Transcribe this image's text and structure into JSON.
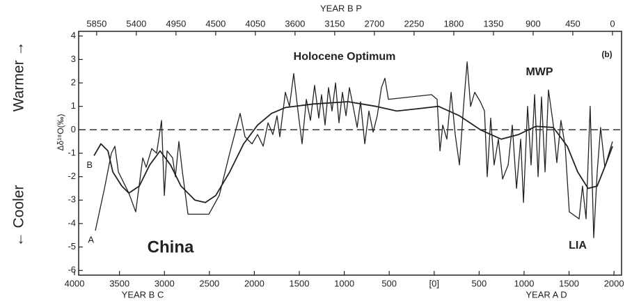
{
  "chart_data": {
    "type": "line",
    "top_axis_label": "YEAR B P",
    "bottom_axis_labels": [
      "YEAR B C",
      "YEAR A D"
    ],
    "ylabel": "Δδ¹⁸O(‰)",
    "side_labels": [
      "Warmer →",
      "← Cooler"
    ],
    "annotations": [
      "Holocene Optimum",
      "MWP",
      "LIA",
      "China",
      "(b)"
    ],
    "xlim": [
      -3954,
      2084
    ],
    "xticks": [
      {
        "value": -4000,
        "label": "4000"
      },
      {
        "value": -3500,
        "label": "3500"
      },
      {
        "value": -3000,
        "label": "3000"
      },
      {
        "value": -2500,
        "label": "2500"
      },
      {
        "value": -2000,
        "label": "2000"
      },
      {
        "value": -1500,
        "label": "1500"
      },
      {
        "value": -1000,
        "label": "1000"
      },
      {
        "value": -500,
        "label": "500"
      },
      {
        "value": 0,
        "label": "[0]"
      },
      500,
      1000,
      1500,
      2000
    ],
    "x2lim": [
      6054,
      -103
    ],
    "x2ticks": [
      5850,
      5400,
      4950,
      4500,
      4050,
      3600,
      3150,
      2700,
      2250,
      1800,
      1350,
      900,
      450,
      0
    ],
    "ylim": [
      -6.2,
      4.2
    ],
    "yticks": [
      -6,
      -5,
      -4,
      -3,
      -2,
      -1,
      0,
      1,
      2,
      3,
      4
    ],
    "reference_line": 0,
    "series": [
      {
        "name": "A",
        "color": "#222222",
        "x": [
          -3768,
          -3667,
          -3590,
          -3551,
          -3512,
          -3396,
          -3319,
          -3241,
          -3203,
          -3141,
          -3087,
          -3032,
          -3001,
          -2971,
          -2909,
          -2878,
          -2839,
          -2800,
          -2738,
          -2506,
          -2390,
          -2274,
          -2158,
          -2104,
          -2026,
          -1964,
          -1902,
          -1848,
          -1794,
          -1748,
          -1717,
          -1655,
          -1609,
          -1562,
          -1515,
          -1469,
          -1422,
          -1376,
          -1330,
          -1283,
          -1252,
          -1214,
          -1175,
          -1136,
          -1097,
          -1059,
          -1020,
          -981,
          -943,
          -896,
          -857,
          -819,
          -772,
          -726,
          -679,
          -633,
          -587,
          -548,
          -509,
          -29,
          33,
          64,
          95,
          141,
          188,
          234,
          281,
          327,
          366,
          405,
          451,
          513,
          560,
          590,
          629,
          667,
          714,
          761,
          823,
          869,
          916,
          962,
          993,
          1039,
          1078,
          1117,
          1156,
          1194,
          1233,
          1271,
          1325,
          1364,
          1410,
          1457,
          1503,
          1612,
          1650,
          1689,
          1735,
          1774,
          1813,
          1851,
          1898,
          1952,
          1983
        ],
        "values": [
          -4.3,
          -2.5,
          -1.0,
          -0.7,
          -1.8,
          -2.7,
          -3.5,
          -1.2,
          -1.6,
          -0.8,
          -1.0,
          0.4,
          -2.8,
          -0.9,
          -1.2,
          -2.0,
          -0.5,
          -1.8,
          -3.6,
          -3.6,
          -2.8,
          -1.0,
          0.7,
          -0.3,
          -0.6,
          -0.2,
          -0.7,
          0.3,
          -0.2,
          0.6,
          -0.3,
          1.6,
          1.0,
          2.4,
          0.8,
          -0.6,
          1.3,
          0.4,
          1.9,
          0.5,
          1.5,
          0.2,
          1.8,
          0.8,
          2.0,
          0.3,
          1.6,
          0.6,
          1.8,
          0.9,
          0.1,
          1.2,
          -0.6,
          0.8,
          -0.1,
          0.6,
          1.8,
          2.2,
          1.3,
          1.5,
          1.3,
          -0.9,
          0.2,
          -0.4,
          1.6,
          -0.2,
          -1.5,
          1.0,
          2.9,
          1.0,
          1.6,
          1.2,
          0.8,
          -2.0,
          0.5,
          -1.5,
          -0.4,
          -2.1,
          -1.5,
          0.2,
          -2.5,
          -0.4,
          -3.1,
          1.0,
          -1.5,
          1.5,
          -2.0,
          1.4,
          -1.8,
          1.7,
          0.2,
          -1.4,
          0.4,
          -0.7,
          -3.5,
          -3.8,
          -2.4,
          -3.8,
          1.0,
          -4.6,
          -1.8,
          0.1,
          -1.6,
          -0.9,
          -0.5
        ]
      },
      {
        "name": "B",
        "color": "#222222",
        "x": [
          -3783,
          -3706,
          -3628,
          -3574,
          -3474,
          -3396,
          -3280,
          -3164,
          -3048,
          -2932,
          -2816,
          -2661,
          -2545,
          -2429,
          -2274,
          -2119,
          -1964,
          -1809,
          -1655,
          -1345,
          -958,
          -648,
          -416,
          -184,
          48,
          281,
          513,
          746,
          940,
          1133,
          1325,
          1480,
          1596,
          1712,
          1813,
          1906,
          1983
        ],
        "values": [
          -1.1,
          -0.6,
          -0.9,
          -1.8,
          -2.4,
          -2.7,
          -2.4,
          -1.5,
          -0.9,
          -1.5,
          -2.4,
          -3.0,
          -3.1,
          -2.8,
          -1.8,
          -0.6,
          0.2,
          0.7,
          0.95,
          1.1,
          1.2,
          1.0,
          0.8,
          0.9,
          1.0,
          0.6,
          0.0,
          -0.4,
          -0.2,
          0.15,
          0.1,
          -0.7,
          -1.8,
          -2.5,
          -2.4,
          -1.5,
          -0.7
        ]
      }
    ]
  }
}
